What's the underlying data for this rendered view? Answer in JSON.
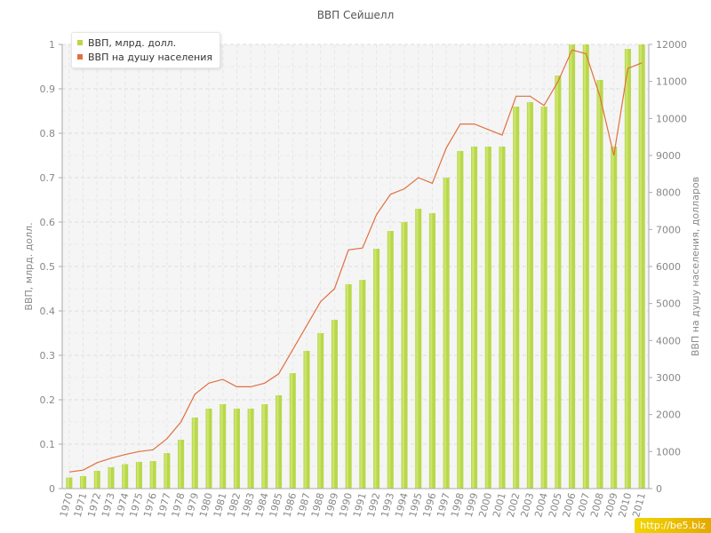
{
  "chart_data": {
    "type": "bar+line",
    "title": "ВВП Сейшелл",
    "ylabel_left": "ВВП, млрд. долл.",
    "ylabel_right": "ВВП на душу населения, долларов",
    "ylim_left": [
      0,
      1
    ],
    "ylim_right": [
      0,
      12000
    ],
    "left_ticks": [
      "0",
      "0.1",
      "0.2",
      "0.3",
      "0.4",
      "0.5",
      "0.6",
      "0.7",
      "0.8",
      "0.9",
      "1"
    ],
    "right_ticks": [
      "0",
      "1000",
      "2000",
      "3000",
      "4000",
      "5000",
      "6000",
      "7000",
      "8000",
      "9000",
      "10000",
      "11000",
      "12000"
    ],
    "grid": true,
    "legend_position": "top-left",
    "categories": [
      "1970",
      "1971",
      "1972",
      "1973",
      "1974",
      "1975",
      "1976",
      "1977",
      "1978",
      "1979",
      "1980",
      "1981",
      "1982",
      "1983",
      "1984",
      "1985",
      "1986",
      "1987",
      "1988",
      "1989",
      "1990",
      "1991",
      "1992",
      "1993",
      "1994",
      "1995",
      "1996",
      "1997",
      "1998",
      "1999",
      "2000",
      "2001",
      "2002",
      "2003",
      "2004",
      "2005",
      "2006",
      "2007",
      "2008",
      "2009",
      "2010",
      "2011"
    ],
    "series": [
      {
        "name": "ВВП, млрд. долл.",
        "type": "bar",
        "axis": "left",
        "color": "#b8d84a",
        "values": [
          0.025,
          0.028,
          0.04,
          0.048,
          0.055,
          0.06,
          0.062,
          0.08,
          0.11,
          0.16,
          0.18,
          0.19,
          0.18,
          0.18,
          0.19,
          0.21,
          0.26,
          0.31,
          0.35,
          0.38,
          0.46,
          0.47,
          0.54,
          0.58,
          0.6,
          0.63,
          0.62,
          0.7,
          0.76,
          0.77,
          0.77,
          0.77,
          0.86,
          0.87,
          0.86,
          0.93,
          1.0,
          1.0,
          0.92,
          0.77,
          0.99,
          1.0
        ]
      },
      {
        "name": "ВВП на душу населения",
        "type": "line",
        "axis": "right",
        "color": "#e07040",
        "values": [
          450,
          500,
          700,
          820,
          920,
          1000,
          1050,
          1350,
          1800,
          2550,
          2850,
          2950,
          2750,
          2750,
          2850,
          3100,
          3750,
          4400,
          5050,
          5400,
          6450,
          6500,
          7400,
          7950,
          8100,
          8400,
          8250,
          9200,
          9850,
          9850,
          9700,
          9550,
          10600,
          10600,
          10350,
          11000,
          11850,
          11750,
          10600,
          9000,
          11350,
          11500
        ]
      }
    ]
  },
  "watermark": "http://be5.biz"
}
